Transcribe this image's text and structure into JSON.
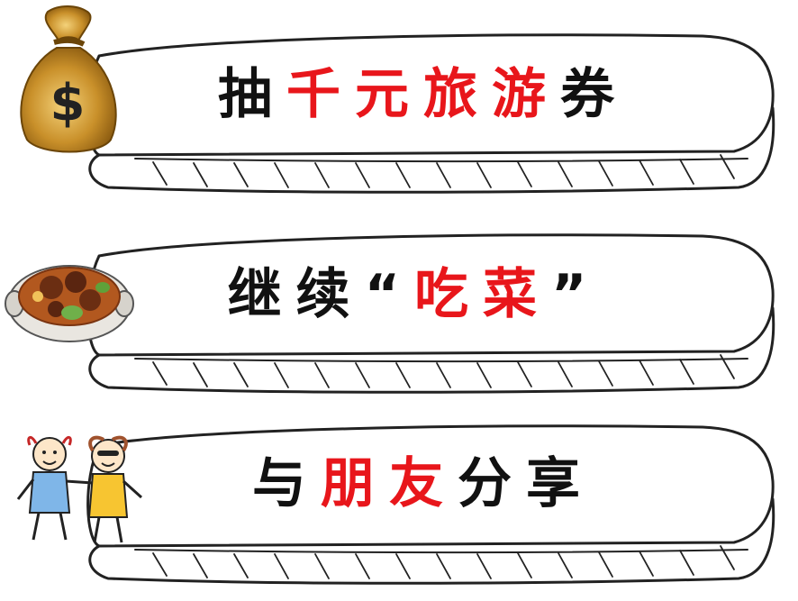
{
  "banners": [
    {
      "icon": "money-bag-icon",
      "segments": [
        {
          "text": "抽",
          "color": "black"
        },
        {
          "text": "千元旅游",
          "color": "red"
        },
        {
          "text": "券",
          "color": "black"
        }
      ]
    },
    {
      "icon": "food-pot-icon",
      "segments": [
        {
          "text": "继续",
          "color": "black"
        },
        {
          "text": "“",
          "color": "black"
        },
        {
          "text": "吃菜",
          "color": "red"
        },
        {
          "text": "”",
          "color": "black"
        }
      ]
    },
    {
      "icon": "kids-holding-hands-icon",
      "segments": [
        {
          "text": "与",
          "color": "black"
        },
        {
          "text": "朋友",
          "color": "red"
        },
        {
          "text": "分享",
          "color": "black"
        }
      ]
    }
  ],
  "colors": {
    "accent_red": "#e8161b",
    "text_black": "#111111",
    "outline": "#222222",
    "bag_gold": "#c9902a"
  }
}
